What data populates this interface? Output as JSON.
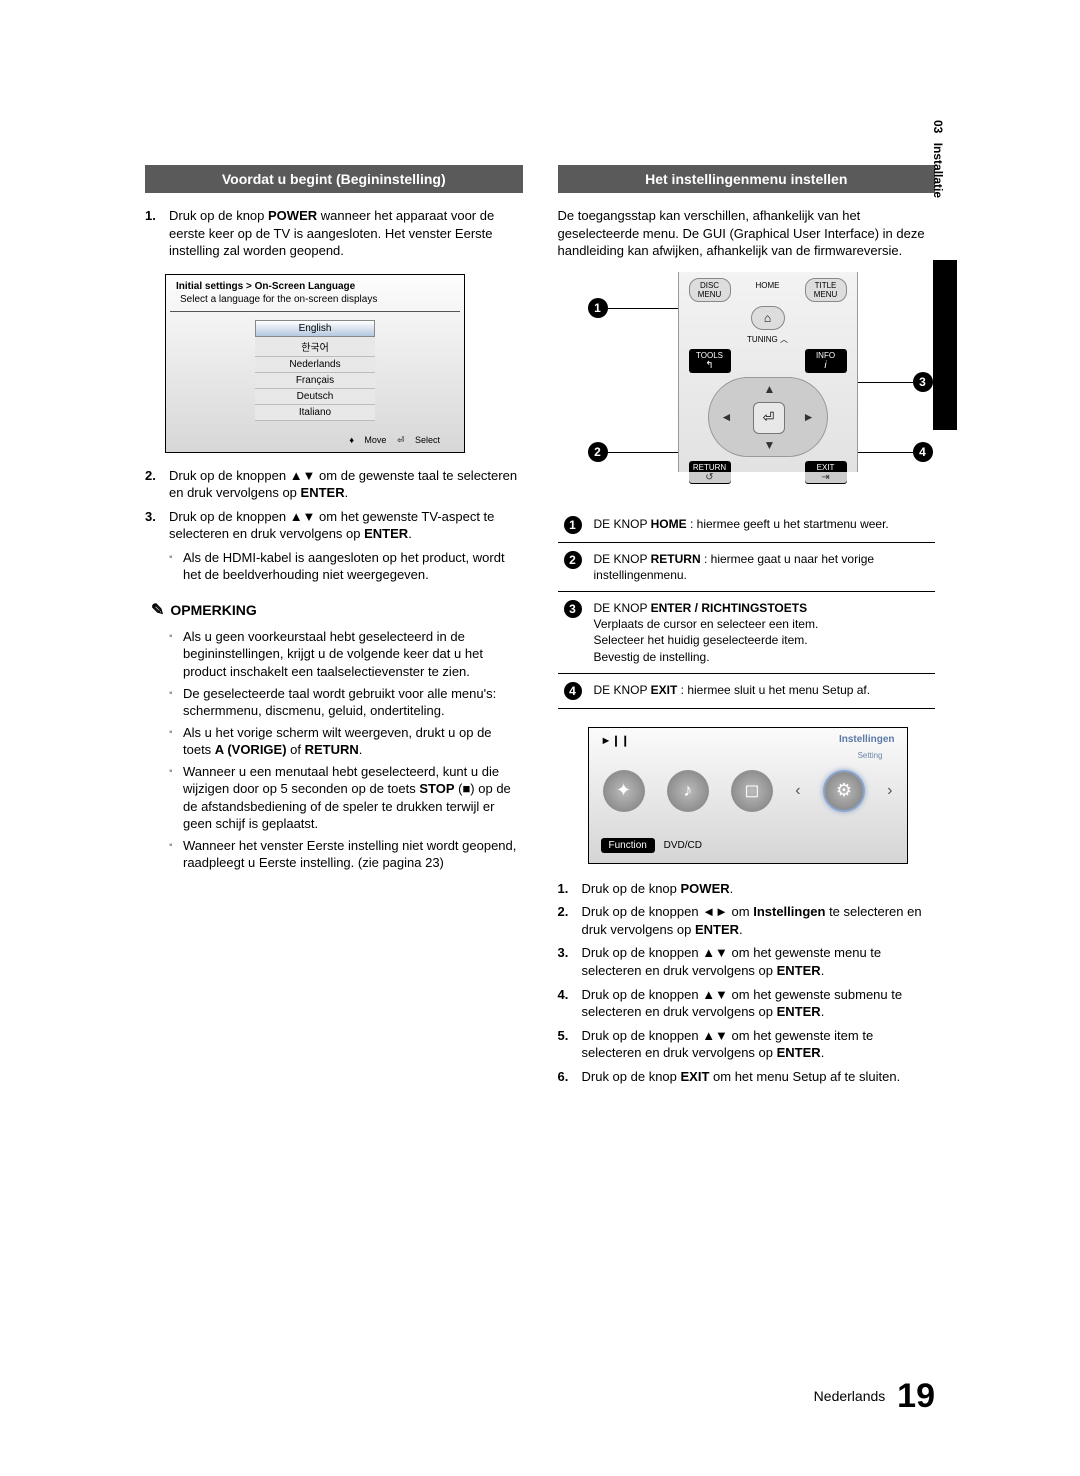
{
  "side_tab": {
    "chapter_num": "03",
    "chapter_title": "Installatie"
  },
  "left": {
    "heading": "Voordat u begint (Begininstelling)",
    "steps_a": [
      "Druk op de knop <b>POWER</b> wanneer het apparaat voor de eerste keer op de TV is aangesloten. Het venster Eerste instelling zal worden geopend."
    ],
    "lang_screen": {
      "title": "Initial settings > On-Screen Language",
      "subtitle": "Select a language for the on-screen displays",
      "languages": [
        "English",
        "한국어",
        "Nederlands",
        "Français",
        "Deutsch",
        "Italiano"
      ],
      "foot_move": "Move",
      "foot_select": "Select"
    },
    "steps_b": [
      "Druk op de knoppen ▲▼ om de gewenste taal te selecteren en druk vervolgens op <b>ENTER</b>.",
      "Druk op de knoppen ▲▼ om het gewenste TV-aspect te selecteren en druk vervolgens op <b>ENTER</b>."
    ],
    "step3_sub": "Als de HDMI-kabel is aangesloten op het product, wordt het de beeldverhouding niet weergegeven.",
    "note_heading": "OPMERKING",
    "notes": [
      "Als u geen voorkeurstaal hebt geselecteerd in de begininstellingen, krijgt u de volgende keer dat u het product inschakelt een taalselectievenster te zien.",
      "De geselecteerde taal wordt gebruikt voor alle menu's: schermmenu, discmenu, geluid, ondertiteling.",
      "Als u het vorige scherm wilt weergeven, drukt u op de toets <b>A (VORIGE)</b> of <b>RETURN</b>.",
      "Wanneer u een menutaal hebt geselecteerd, kunt u die wijzigen door op 5 seconden op de toets <b>STOP</b> (■) op de de afstandsbediening of de speler te drukken terwijl er geen schijf is geplaatst.",
      "Wanneer het venster Eerste instelling niet wordt geopend, raadpleegt u Eerste instelling. (zie pagina 23)"
    ]
  },
  "right": {
    "heading": "Het instellingenmenu instellen",
    "intro": "De toegangsstap kan verschillen, afhankelijk van het geselecteerde menu. De GUI (Graphical User Interface) in deze handleiding kan afwijken, afhankelijk van de firmwareversie.",
    "remote_labels": {
      "disc_menu": "DISC MENU",
      "home": "HOME",
      "title_menu": "TITLE MENU",
      "tuning": "TUNING",
      "tools": "TOOLS",
      "info": "INFO",
      "return": "RETURN",
      "exit": "EXIT"
    },
    "callouts": [
      {
        "n": "1",
        "html": "DE KNOP <b>HOME</b> : hiermee geeft u het startmenu weer."
      },
      {
        "n": "2",
        "html": "DE KNOP <b>RETURN</b> : hiermee gaat u naar het vorige instellingenmenu."
      },
      {
        "n": "3",
        "html": "DE KNOP <b>ENTER / RICHTINGSTOETS</b><br>Verplaats de cursor en selecteer een item.<br>Selecteer het huidig geselecteerde item.<br>Bevestig de instelling."
      },
      {
        "n": "4",
        "html": "DE KNOP <b>EXIT</b> : hiermee sluit u het menu Setup af."
      }
    ],
    "settings_screen": {
      "label": "Instellingen",
      "setting_mini": "Setting",
      "function": "Function",
      "source": "DVD/CD"
    },
    "bottom_steps": [
      "Druk op de knop <b>POWER</b>.",
      "Druk op de knoppen ◄► om <b>Instellingen</b> te selecteren en druk vervolgens op <b>ENTER</b>.",
      "Druk op de knoppen ▲▼ om het gewenste menu te selecteren en druk vervolgens op <b>ENTER</b>.",
      "Druk op de knoppen ▲▼ om het gewenste submenu te selecteren en druk vervolgens op <b>ENTER</b>.",
      "Druk op de knoppen ▲▼ om het gewenste item te selecteren en druk vervolgens op <b>ENTER</b>.",
      "Druk op de knop <b>EXIT</b> om het menu Setup af te sluiten."
    ]
  },
  "footer": {
    "lang": "Nederlands",
    "page": "19"
  }
}
